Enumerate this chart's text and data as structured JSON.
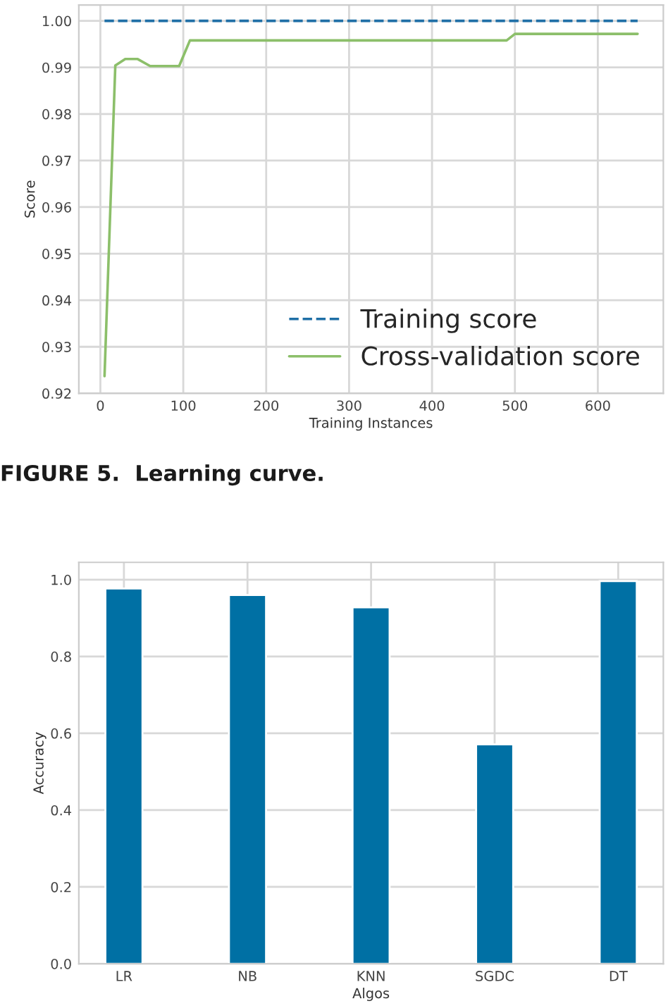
{
  "chart_data": [
    {
      "type": "line",
      "xlabel": "Training Instances",
      "ylabel": "Score",
      "series": [
        {
          "name": "Training score",
          "color": "#1f6fa6",
          "line_style": "dashed",
          "x": [
            5,
            648
          ],
          "values": [
            1.0,
            1.0
          ]
        },
        {
          "name": "Cross-validation score",
          "color": "#8cbf6a",
          "line_style": "solid",
          "x": [
            5,
            18,
            30,
            45,
            60,
            95,
            108,
            490,
            500,
            648
          ],
          "values": [
            0.9237,
            0.9904,
            0.9918,
            0.9918,
            0.9903,
            0.9903,
            0.9958,
            0.9958,
            0.9972,
            0.9972
          ]
        }
      ],
      "xlim": [
        -26,
        679
      ],
      "xticks": [
        0,
        100,
        200,
        300,
        400,
        500,
        600
      ],
      "ylim": [
        0.92,
        1.0034
      ],
      "yticks": [
        {
          "value": 0.92,
          "label": "0.92"
        },
        {
          "value": 0.93,
          "label": "0.93"
        },
        {
          "value": 0.94,
          "label": "0.94"
        },
        {
          "value": 0.95,
          "label": "0.95"
        },
        {
          "value": 0.96,
          "label": "0.96"
        },
        {
          "value": 0.97,
          "label": "0.97"
        },
        {
          "value": 0.98,
          "label": "0.98"
        },
        {
          "value": 0.99,
          "label": "0.99"
        },
        {
          "value": 1.0,
          "label": "1.00"
        }
      ],
      "grid": true,
      "legend": "bottom right",
      "marker": "none",
      "annotations": [
        "FIGURE 5.  Learning curve."
      ]
    },
    {
      "type": "bar",
      "xlabel": "Algos",
      "ylabel": "Accuracy",
      "categories": [
        "LR",
        "NB",
        "KNN",
        "SGDC",
        "DT"
      ],
      "values": [
        0.977,
        0.96,
        0.928,
        0.571,
        0.996
      ],
      "color": "#0070a4",
      "ylim": [
        0,
        1.045
      ],
      "yticks": [
        {
          "value": 0.0,
          "label": "0.0"
        },
        {
          "value": 0.2,
          "label": "0.2"
        },
        {
          "value": 0.4,
          "label": "0.4"
        },
        {
          "value": 0.6,
          "label": "0.6"
        },
        {
          "value": 0.8,
          "label": "0.8"
        },
        {
          "value": 1.0,
          "label": "1.0"
        }
      ],
      "grid": true
    }
  ]
}
